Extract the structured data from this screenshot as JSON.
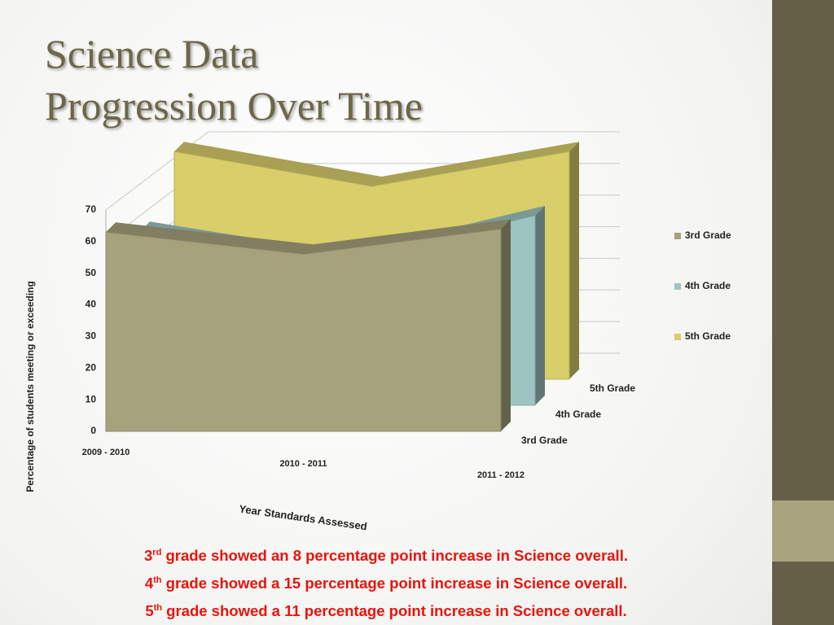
{
  "chart_data": {
    "type": "area3d",
    "title": [
      "Science Data",
      "Progression Over Time"
    ],
    "x_label": "Year Standards Assessed",
    "y_label": "Percentage of students meeting or exceeding",
    "categories": [
      "2009 - 2010",
      "2010 - 2011",
      "2011 - 2012"
    ],
    "series": [
      {
        "name": "3rd Grade",
        "color": "#a5a27c",
        "values": [
          63,
          56,
          64
        ]
      },
      {
        "name": "4th Grade",
        "color": "#9ec4c2",
        "values": [
          55,
          45,
          60
        ]
      },
      {
        "name": "5th Grade",
        "color": "#d8ce6a",
        "values": [
          72,
          61,
          72
        ]
      }
    ],
    "ylim": [
      0,
      70
    ],
    "yticks": [
      0,
      10,
      20,
      30,
      40,
      50,
      60,
      70
    ],
    "grid": true,
    "legend": "right"
  },
  "notes": [
    {
      "number": "3",
      "suffix": "rd",
      "text": "grade showed an 8 percentage point increase in Science overall."
    },
    {
      "number": "4",
      "suffix": "th",
      "text": "grade showed a 15 percentage point increase in Science overall."
    },
    {
      "number": "5",
      "suffix": "th",
      "text": "grade showed a 11 percentage point increase in Science overall."
    }
  ]
}
